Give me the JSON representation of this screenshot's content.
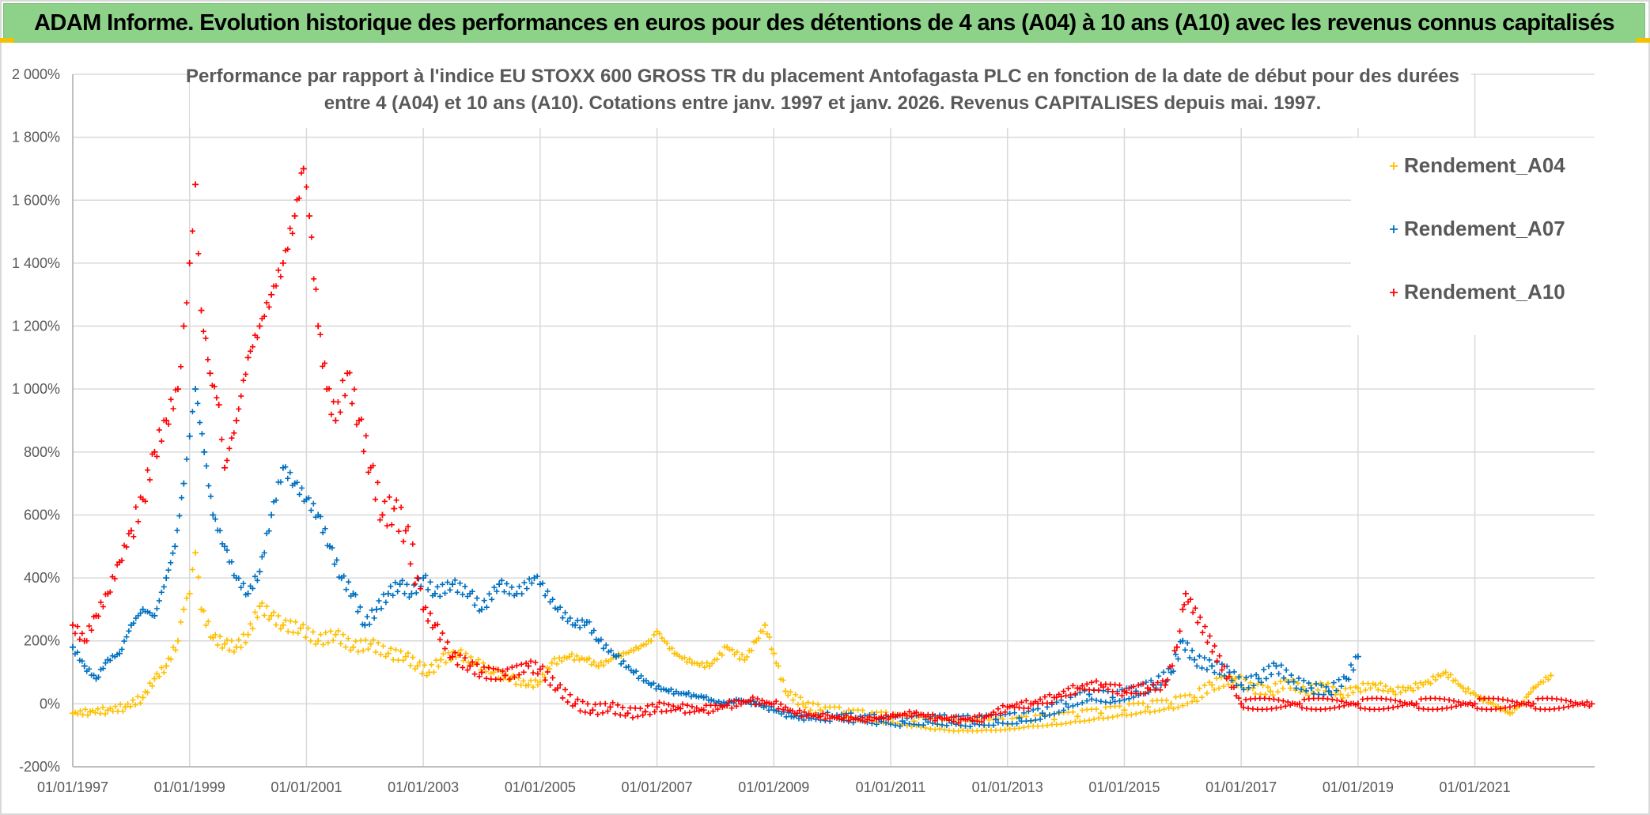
{
  "banner": {
    "title": "ADAM Informe. Evolution historique des performances en euros pour des détentions de 4 ans (A04) à 10 ans (A10) avec les revenus connus capitalisés"
  },
  "chart_data": {
    "type": "scatter",
    "title_line1": "Performance par rapport à l'indice EU STOXX 600 GROSS TR  du placement Antofagasta PLC en fonction de la date de début pour des durées",
    "title_line2": "entre 4 (A04) et 10 ans (A10). Cotations entre janv. 1997 et janv. 2026. Revenus CAPITALISES depuis mai. 1997.",
    "xlabel": "",
    "ylabel": "",
    "x_unit": "year",
    "xlim": [
      1997.0,
      2023.05
    ],
    "ylim": [
      -200,
      2000
    ],
    "y_ticks": [
      -200,
      0,
      200,
      400,
      600,
      800,
      1000,
      1200,
      1400,
      1600,
      1800,
      2000
    ],
    "y_tick_labels": [
      "-200%",
      "0%",
      "200%",
      "400%",
      "600%",
      "800%",
      "1 000%",
      "1 200%",
      "1 400%",
      "1 600%",
      "1 800%",
      "2 000%"
    ],
    "x_ticks": [
      1997,
      1999,
      2001,
      2003,
      2005,
      2007,
      2009,
      2011,
      2013,
      2015,
      2017,
      2019,
      2021
    ],
    "x_tick_labels": [
      "01/01/1997",
      "01/01/1999",
      "01/01/2001",
      "01/01/2003",
      "01/01/2005",
      "01/01/2007",
      "01/01/2009",
      "01/01/2011",
      "01/01/2013",
      "01/01/2015",
      "01/01/2017",
      "01/01/2019",
      "01/01/2021"
    ],
    "grid": true,
    "legend_position": "top-right",
    "marker": "+",
    "series": [
      {
        "name": "Rendement_A04",
        "color": "#ffc000",
        "x": [
          1997.0,
          1997.3,
          1997.6,
          1997.9,
          1998.2,
          1998.4,
          1998.6,
          1998.8,
          1998.9,
          1999.0,
          1999.1,
          1999.2,
          1999.4,
          1999.6,
          1999.8,
          2000.0,
          2000.2,
          2000.4,
          2000.6,
          2000.9,
          2001.2,
          2001.5,
          2001.8,
          2002.1,
          2002.4,
          2002.7,
          2002.9,
          2003.1,
          2003.3,
          2003.6,
          2003.9,
          2004.2,
          2004.5,
          2004.8,
          2005.0,
          2005.2,
          2005.5,
          2005.8,
          2006.0,
          2006.3,
          2006.6,
          2006.9,
          2007.0,
          2007.3,
          2007.6,
          2007.9,
          2008.2,
          2008.5,
          2008.7,
          2008.85,
          2009.0,
          2009.2,
          2009.5,
          2009.8,
          2010.2,
          2010.6,
          2011.0,
          2011.4,
          2011.8,
          2012.2,
          2012.6,
          2013.0,
          2013.4,
          2013.8,
          2014.2,
          2014.6,
          2015.0,
          2015.4,
          2015.8,
          2016.2,
          2016.5,
          2016.9,
          2017.2,
          2017.5,
          2017.8,
          2018.1,
          2018.4,
          2018.7,
          2019.0,
          2019.3,
          2019.6,
          2019.9,
          2020.2,
          2020.5,
          2020.8,
          2021.1,
          2021.4,
          2021.6,
          2021.8,
          2022.0,
          2022.3
        ],
        "values": [
          -30,
          -25,
          -20,
          -10,
          20,
          80,
          120,
          200,
          300,
          350,
          480,
          300,
          210,
          190,
          180,
          220,
          310,
          280,
          250,
          240,
          200,
          220,
          180,
          190,
          160,
          150,
          120,
          100,
          140,
          160,
          130,
          100,
          80,
          60,
          70,
          130,
          150,
          140,
          120,
          150,
          170,
          200,
          230,
          160,
          130,
          120,
          180,
          140,
          200,
          250,
          160,
          40,
          0,
          -20,
          -30,
          -40,
          -45,
          -55,
          -65,
          -70,
          -68,
          -65,
          -55,
          -50,
          -40,
          -30,
          -20,
          -10,
          0,
          20,
          60,
          80,
          50,
          40,
          70,
          40,
          60,
          30,
          50,
          60,
          40,
          50,
          70,
          100,
          50,
          20,
          -10,
          -30,
          0,
          50,
          90
        ]
      },
      {
        "name": "Rendement_A07",
        "color": "#0070c0",
        "x": [
          1997.0,
          1997.2,
          1997.4,
          1997.6,
          1997.8,
          1998.0,
          1998.2,
          1998.4,
          1998.6,
          1998.75,
          1998.9,
          1999.0,
          1999.1,
          1999.25,
          1999.4,
          1999.6,
          1999.8,
          2000.0,
          2000.2,
          2000.4,
          2000.6,
          2000.8,
          2001.0,
          2001.2,
          2001.4,
          2001.6,
          2001.8,
          2002.0,
          2002.2,
          2002.4,
          2002.6,
          2002.8,
          2003.0,
          2003.2,
          2003.5,
          2003.8,
          2004.0,
          2004.3,
          2004.6,
          2004.9,
          2005.0,
          2005.3,
          2005.6,
          2005.8,
          2006.0,
          2006.3,
          2006.6,
          2006.9,
          2007.2,
          2007.5,
          2007.8,
          2008.1,
          2008.4,
          2008.7,
          2009.0,
          2009.3,
          2009.6,
          2010.0,
          2010.4,
          2010.8,
          2011.2,
          2011.6,
          2012.0,
          2012.4,
          2012.8,
          2013.2,
          2013.6,
          2014.0,
          2014.4,
          2014.8,
          2015.2,
          2015.5,
          2015.8,
          2016.0,
          2016.2,
          2016.5,
          2016.8,
          2017.0,
          2017.3,
          2017.6,
          2017.9,
          2018.2,
          2018.5,
          2018.8,
          2019.0
        ],
        "values": [
          180,
          120,
          80,
          140,
          160,
          250,
          300,
          280,
          400,
          500,
          700,
          850,
          1000,
          800,
          600,
          500,
          400,
          350,
          420,
          600,
          750,
          700,
          650,
          600,
          500,
          400,
          350,
          250,
          300,
          350,
          380,
          350,
          400,
          350,
          380,
          350,
          300,
          380,
          350,
          400,
          380,
          300,
          250,
          260,
          200,
          150,
          100,
          60,
          40,
          30,
          20,
          0,
          10,
          0,
          -20,
          -40,
          -45,
          -40,
          -45,
          -50,
          -55,
          -50,
          -52,
          -55,
          -50,
          -45,
          -30,
          0,
          30,
          20,
          40,
          60,
          100,
          200,
          140,
          120,
          100,
          60,
          80,
          120,
          70,
          50,
          40,
          80,
          150
        ]
      },
      {
        "name": "Rendement_A10",
        "color": "#ff0000",
        "x": [
          1997.0,
          1997.2,
          1997.4,
          1997.6,
          1997.8,
          1998.0,
          1998.2,
          1998.4,
          1998.6,
          1998.8,
          1998.9,
          1999.0,
          1999.1,
          1999.2,
          1999.35,
          1999.5,
          1999.6,
          1999.8,
          2000.0,
          2000.2,
          2000.4,
          2000.6,
          2000.8,
          2000.95,
          2001.05,
          2001.2,
          2001.35,
          2001.5,
          2001.7,
          2001.9,
          2002.1,
          2002.3,
          2002.5,
          2002.7,
          2002.9,
          2003.0,
          2003.2,
          2003.5,
          2003.8,
          2004.0,
          2004.4,
          2004.8,
          2005.0,
          2005.3,
          2005.6,
          2005.9,
          2006.2,
          2006.5,
          2006.8,
          2007.0,
          2007.4,
          2007.8,
          2008.2,
          2008.6,
          2009.0,
          2009.4,
          2009.8,
          2010.2,
          2010.6,
          2011.0,
          2011.4,
          2011.8,
          2012.2,
          2012.6,
          2013.0,
          2013.4,
          2013.8,
          2014.2,
          2014.6,
          2015.0,
          2015.4,
          2015.7,
          2015.9,
          2016.0,
          2016.05,
          2017.0,
          2018.0,
          2019.0,
          2020.0,
          2021.0,
          2022.0,
          2023.0
        ],
        "values": [
          250,
          200,
          280,
          350,
          450,
          550,
          650,
          800,
          900,
          1000,
          1200,
          1400,
          1650,
          1250,
          1050,
          950,
          750,
          900,
          1100,
          1200,
          1300,
          1400,
          1550,
          1700,
          1550,
          1200,
          1000,
          900,
          1050,
          900,
          750,
          600,
          620,
          550,
          400,
          300,
          250,
          150,
          120,
          100,
          90,
          120,
          110,
          50,
          0,
          -20,
          -10,
          -30,
          -25,
          -10,
          -15,
          -20,
          -5,
          10,
          0,
          -30,
          -40,
          -45,
          -50,
          -40,
          -30,
          -45,
          -50,
          -45,
          -10,
          0,
          20,
          50,
          60,
          40,
          50,
          60,
          180,
          300,
          350,
          0,
          0,
          0,
          0,
          0,
          0,
          0
        ]
      }
    ]
  }
}
